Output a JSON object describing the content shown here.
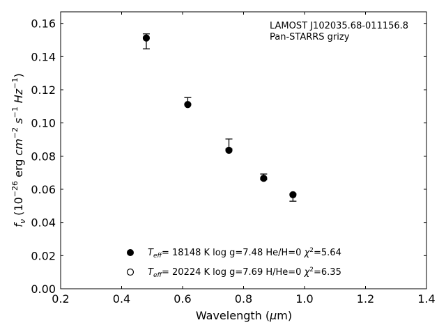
{
  "chart_data": {
    "type": "scatter",
    "xlabel_main": "Wavelength (",
    "xlabel_mu": "μ",
    "xlabel_unit": "m)",
    "ylabel": {
      "f": "f",
      "nu": "ν",
      "open": " (10",
      "exp1": "−26",
      "erg": " erg ",
      "cm": "cm",
      "exp2": "−2",
      "s": " s",
      "exp3": "−1",
      "hz": " Hz",
      "exp4": "−1",
      "close": ")"
    },
    "xlim": [
      0.2,
      1.4
    ],
    "ylim": [
      0.0,
      0.167
    ],
    "xticks": [
      0.2,
      0.4,
      0.6,
      0.8,
      1.0,
      1.2,
      1.4
    ],
    "xtick_labels": [
      "0.2",
      "0.4",
      "0.6",
      "0.8",
      "1.0",
      "1.2",
      "1.4"
    ],
    "yticks": [
      0.0,
      0.02,
      0.04,
      0.06,
      0.08,
      0.1,
      0.12,
      0.14,
      0.16
    ],
    "ytick_labels": [
      "0.00",
      "0.02",
      "0.04",
      "0.06",
      "0.08",
      "0.10",
      "0.12",
      "0.14",
      "0.16"
    ],
    "annotation": [
      "LAMOST J102035.68-011156.8",
      "Pan-STARRS grizy"
    ],
    "observed": {
      "x": [
        0.481,
        0.617,
        0.752,
        0.866,
        0.962
      ],
      "y": [
        0.1532,
        0.113,
        0.0858,
        0.067,
        0.0553
      ],
      "yerr_low": [
        0.0085,
        0.0018,
        0.0015,
        0.0013,
        0.0025
      ],
      "yerr_high": [
        0.0005,
        0.0023,
        0.0045,
        0.0022,
        0.002
      ]
    },
    "series": [
      {
        "marker": "filled",
        "x": [
          0.481,
          0.617,
          0.752,
          0.866,
          0.962
        ],
        "y": [
          0.1512,
          0.1111,
          0.0835,
          0.0666,
          0.0567
        ],
        "label": {
          "T": "T",
          "sub": "eff",
          "text": "= 18148 K  log g=7.48  He/H=0  ",
          "chi": "χ",
          "sup": "2",
          "val": "=5.64"
        }
      },
      {
        "marker": "open",
        "x": [],
        "y": [],
        "label": {
          "T": "T",
          "sub": "eff",
          "text": "= 20224 K  log g=7.69  H/He=0  ",
          "chi": "χ",
          "sup": "2",
          "val": "=6.35"
        }
      }
    ],
    "grid": false,
    "legend_position": "lower-center"
  }
}
